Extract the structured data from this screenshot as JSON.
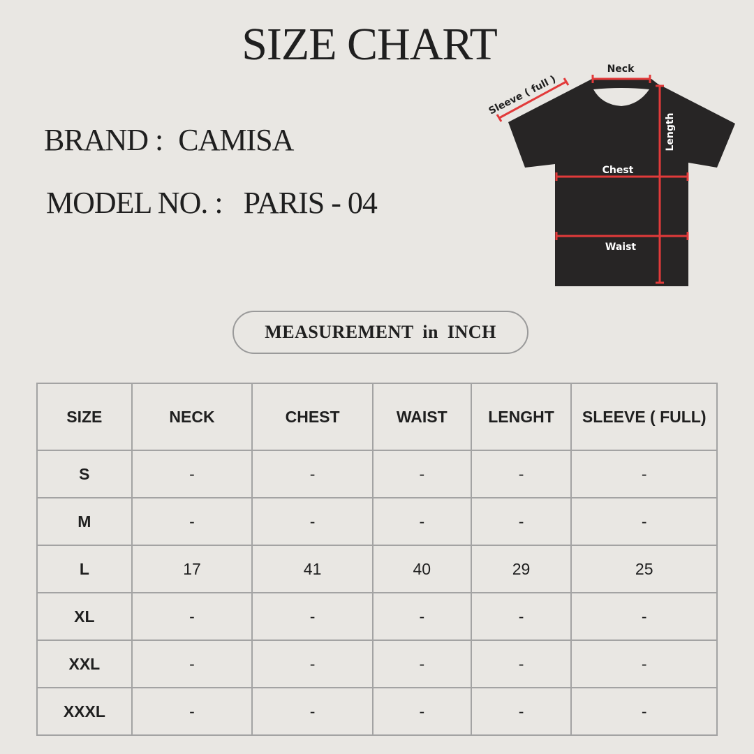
{
  "title": "SIZE CHART",
  "brand": {
    "label": "BRAND :",
    "value": "CAMISA"
  },
  "model": {
    "label": "MODEL NO. :",
    "value": "PARIS - 04"
  },
  "unit_badge": "MEASUREMENT  in  INCH",
  "diagram": {
    "neck": "Neck",
    "sleeve": "Sleeve ( full )",
    "length": "Length",
    "chest": "Chest",
    "waist": "Waist",
    "shirt_color": "#272525",
    "line_color": "#e23a3a"
  },
  "table": {
    "headers": [
      "SIZE",
      "NECK",
      "CHEST",
      "WAIST",
      "LENGHT",
      "SLEEVE ( FULL)"
    ],
    "rows": [
      [
        "S",
        "-",
        "-",
        "-",
        "-",
        "-"
      ],
      [
        "M",
        "-",
        "-",
        "-",
        "-",
        "-"
      ],
      [
        "L",
        "17",
        "41",
        "40",
        "29",
        "25"
      ],
      [
        "XL",
        "-",
        "-",
        "-",
        "-",
        "-"
      ],
      [
        "XXL",
        "-",
        "-",
        "-",
        "-",
        "-"
      ],
      [
        "XXXL",
        "-",
        "-",
        "-",
        "-",
        "-"
      ]
    ]
  }
}
